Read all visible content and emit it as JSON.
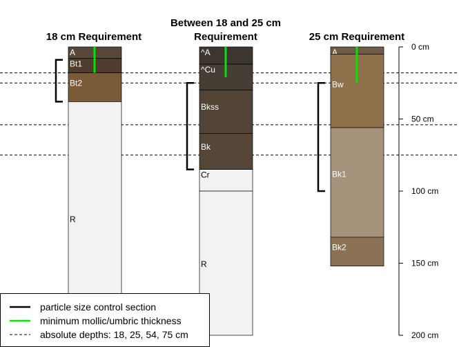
{
  "profiles": [
    {
      "title_lines": [
        "18 cm Requirement"
      ],
      "horizons": [
        {
          "name": "A",
          "top": 0,
          "bottom": 8,
          "color": "#57473a",
          "text": "#ffffff"
        },
        {
          "name": "Bt1",
          "top": 8,
          "bottom": 18,
          "color": "#4f3c2c",
          "text": "#ffffff"
        },
        {
          "name": "Bt2",
          "top": 18,
          "bottom": 38,
          "color": "#7a5a37",
          "text": "#ffffff"
        },
        {
          "name": "R",
          "top": 38,
          "bottom": 200,
          "color": "#f2f2f2",
          "text": "#000000"
        }
      ],
      "control_section": {
        "top": 9,
        "bottom": 38
      },
      "mollic_thickness": 18
    },
    {
      "title_lines": [
        "Between 18 and 25 cm",
        "Requirement"
      ],
      "horizons": [
        {
          "name": "^A",
          "top": 0,
          "bottom": 12,
          "color": "#3d3630",
          "text": "#ffffff"
        },
        {
          "name": "^Cu",
          "top": 12,
          "bottom": 30,
          "color": "#463d35",
          "text": "#ffffff"
        },
        {
          "name": "Bkss",
          "top": 30,
          "bottom": 60,
          "color": "#524538",
          "text": "#ffffff"
        },
        {
          "name": "Bk",
          "top": 60,
          "bottom": 85,
          "color": "#554637",
          "text": "#ffffff"
        },
        {
          "name": "Cr",
          "top": 85,
          "bottom": 100,
          "color": "#f2f2f2",
          "text": "#000000"
        },
        {
          "name": "R",
          "top": 100,
          "bottom": 200,
          "color": "#f2f2f2",
          "text": "#000000"
        }
      ],
      "control_section": {
        "top": 25,
        "bottom": 85
      },
      "mollic_thickness": 21
    },
    {
      "title_lines": [
        "25 cm Requirement"
      ],
      "horizons": [
        {
          "name": "A",
          "top": 0,
          "bottom": 5,
          "color": "#6e5c49",
          "text": "#ffffff"
        },
        {
          "name": "Bw",
          "top": 5,
          "bottom": 56,
          "color": "#8f714c",
          "text": "#ffffff"
        },
        {
          "name": "Bk1",
          "top": 56,
          "bottom": 132,
          "color": "#a5937c",
          "text": "#ffffff"
        },
        {
          "name": "Bk2",
          "top": 132,
          "bottom": 152,
          "color": "#8b7255",
          "text": "#ffffff"
        }
      ],
      "control_section": {
        "top": 25,
        "bottom": 100
      },
      "mollic_thickness": 25
    }
  ],
  "reference_depths": [
    18,
    25,
    54,
    75
  ],
  "depth_axis": {
    "range": [
      0,
      200
    ],
    "ticks": [
      {
        "value": 0,
        "label": "0 cm"
      },
      {
        "value": 50,
        "label": "50 cm"
      },
      {
        "value": 100,
        "label": "100 cm"
      },
      {
        "value": 150,
        "label": "150 cm"
      },
      {
        "value": 200,
        "label": "200 cm"
      }
    ]
  },
  "legend": {
    "items": [
      {
        "label": "particle size control section",
        "color": "#000000",
        "style": "solid"
      },
      {
        "label": "minimum mollic/umbric thickness",
        "color": "#00e600",
        "style": "solid"
      },
      {
        "label": "absolute depths: 18, 25, 54, 75 cm",
        "color": "#000000",
        "style": "dashed"
      }
    ]
  }
}
